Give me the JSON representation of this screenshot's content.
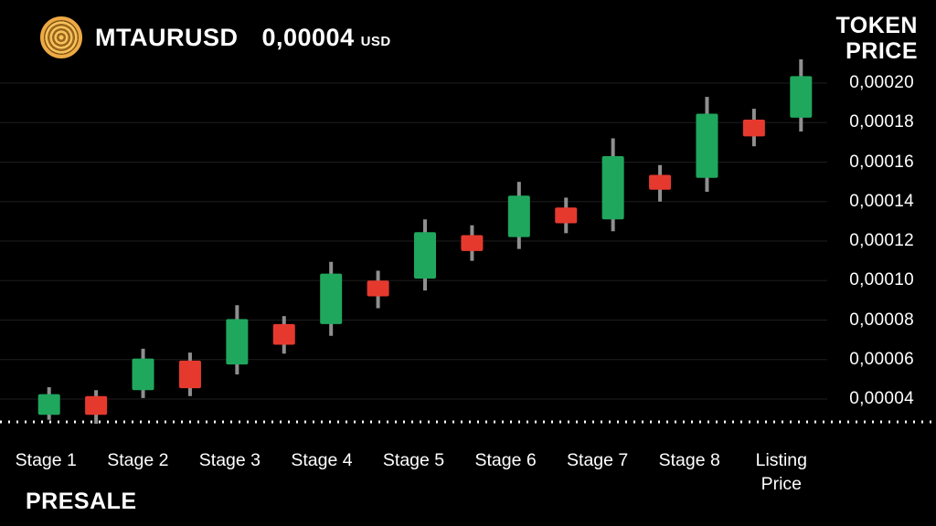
{
  "header": {
    "symbol": "MTAURUSD",
    "price": "0,00004",
    "currency": "USD"
  },
  "token_price_label": {
    "line1": "TOKEN",
    "line2": "PRICE"
  },
  "presale_label": "PRESALE",
  "colors": {
    "background": "#000000",
    "text": "#ffffff",
    "up": "#1FA75D",
    "down": "#E6392E",
    "wick": "#8f8f8f",
    "grid": "#1e1e1e",
    "baseline": "#ffffff",
    "coin": "#edaa45"
  },
  "chart_data": {
    "type": "candlestick",
    "title": "MTAURUSD token price by presale stage",
    "x_labels": [
      "Stage 1",
      "Stage 2",
      "Stage 3",
      "Stage 4",
      "Stage 5",
      "Stage 6",
      "Stage 7",
      "Stage 8",
      "Listing\nPrice"
    ],
    "y_tick_labels": [
      "0,00004",
      "0,00006",
      "0,00008",
      "0,00010",
      "0,00012",
      "0,00014",
      "0,00016",
      "0,00018",
      "0,00020"
    ],
    "y_tick_values": [
      4e-05,
      6e-05,
      8e-05,
      0.0001,
      0.00012,
      0.00014,
      0.00016,
      0.00018,
      0.0002
    ],
    "grid": true,
    "legend": false,
    "candles": [
      {
        "label": "Stage 1 up",
        "open": 3.2e-05,
        "high": 4.6e-05,
        "low": 2.95e-05,
        "close": 4.25e-05,
        "direction": "up"
      },
      {
        "label": "Stage 1 down",
        "open": 4.15e-05,
        "high": 4.45e-05,
        "low": 2.75e-05,
        "close": 3.2e-05,
        "direction": "down"
      },
      {
        "label": "Stage 2 up",
        "open": 4.45e-05,
        "high": 6.55e-05,
        "low": 4.05e-05,
        "close": 6.05e-05,
        "direction": "up"
      },
      {
        "label": "Stage 2 down",
        "open": 5.95e-05,
        "high": 6.35e-05,
        "low": 4.15e-05,
        "close": 4.55e-05,
        "direction": "down"
      },
      {
        "label": "Stage 3 up",
        "open": 5.75e-05,
        "high": 8.75e-05,
        "low": 5.25e-05,
        "close": 8.05e-05,
        "direction": "up"
      },
      {
        "label": "Stage 3 down",
        "open": 7.8e-05,
        "high": 8.2e-05,
        "low": 6.3e-05,
        "close": 6.75e-05,
        "direction": "down"
      },
      {
        "label": "Stage 4 up",
        "open": 7.8e-05,
        "high": 0.0001095,
        "low": 7.2e-05,
        "close": 0.0001035,
        "direction": "up"
      },
      {
        "label": "Stage 4 down",
        "open": 0.0001,
        "high": 0.000105,
        "low": 8.6e-05,
        "close": 9.2e-05,
        "direction": "down"
      },
      {
        "label": "Stage 5 up",
        "open": 0.000101,
        "high": 0.000131,
        "low": 9.5e-05,
        "close": 0.0001245,
        "direction": "up"
      },
      {
        "label": "Stage 5 down",
        "open": 0.000123,
        "high": 0.000128,
        "low": 0.00011,
        "close": 0.000115,
        "direction": "down"
      },
      {
        "label": "Stage 6 up",
        "open": 0.000122,
        "high": 0.00015,
        "low": 0.000116,
        "close": 0.000143,
        "direction": "up"
      },
      {
        "label": "Stage 6 down",
        "open": 0.000137,
        "high": 0.000142,
        "low": 0.000124,
        "close": 0.000129,
        "direction": "down"
      },
      {
        "label": "Stage 7 up",
        "open": 0.000131,
        "high": 0.000172,
        "low": 0.000125,
        "close": 0.000163,
        "direction": "up"
      },
      {
        "label": "Stage 7 down",
        "open": 0.0001535,
        "high": 0.0001585,
        "low": 0.00014,
        "close": 0.000146,
        "direction": "down"
      },
      {
        "label": "Stage 8 up",
        "open": 0.000152,
        "high": 0.000193,
        "low": 0.000145,
        "close": 0.0001845,
        "direction": "up"
      },
      {
        "label": "Stage 8 down",
        "open": 0.0001815,
        "high": 0.000187,
        "low": 0.000168,
        "close": 0.000173,
        "direction": "down"
      },
      {
        "label": "Listing up",
        "open": 0.0001825,
        "high": 0.000212,
        "low": 0.0001755,
        "close": 0.0002035,
        "direction": "up"
      }
    ]
  }
}
